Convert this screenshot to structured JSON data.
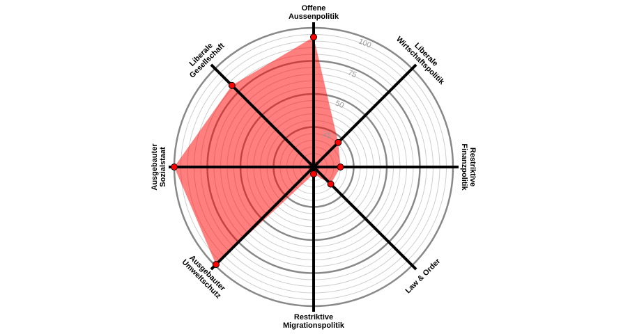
{
  "chart_data": {
    "type": "radar",
    "categories": [
      [
        "Offene",
        "Aussenpolitik"
      ],
      [
        "Liberale",
        "Wirtschaftspolitik"
      ],
      [
        "Restriktive",
        "Finanzpolitik"
      ],
      [
        "Law & Order"
      ],
      [
        "Restriktive",
        "Migrationspolitik"
      ],
      [
        "Ausgebauter",
        "Umweltschutz"
      ],
      [
        "Ausgebauter",
        "Sozialstaat"
      ],
      [
        "Liberale",
        "Gesellschaft"
      ]
    ],
    "series": [
      {
        "color": "#ff0000",
        "values": [
          93,
          21,
          15,
          13,
          0,
          99,
          100,
          82
        ]
      }
    ],
    "rlim": [
      0,
      100
    ],
    "rticks": [
      25,
      50,
      75,
      100
    ],
    "grid": true
  }
}
